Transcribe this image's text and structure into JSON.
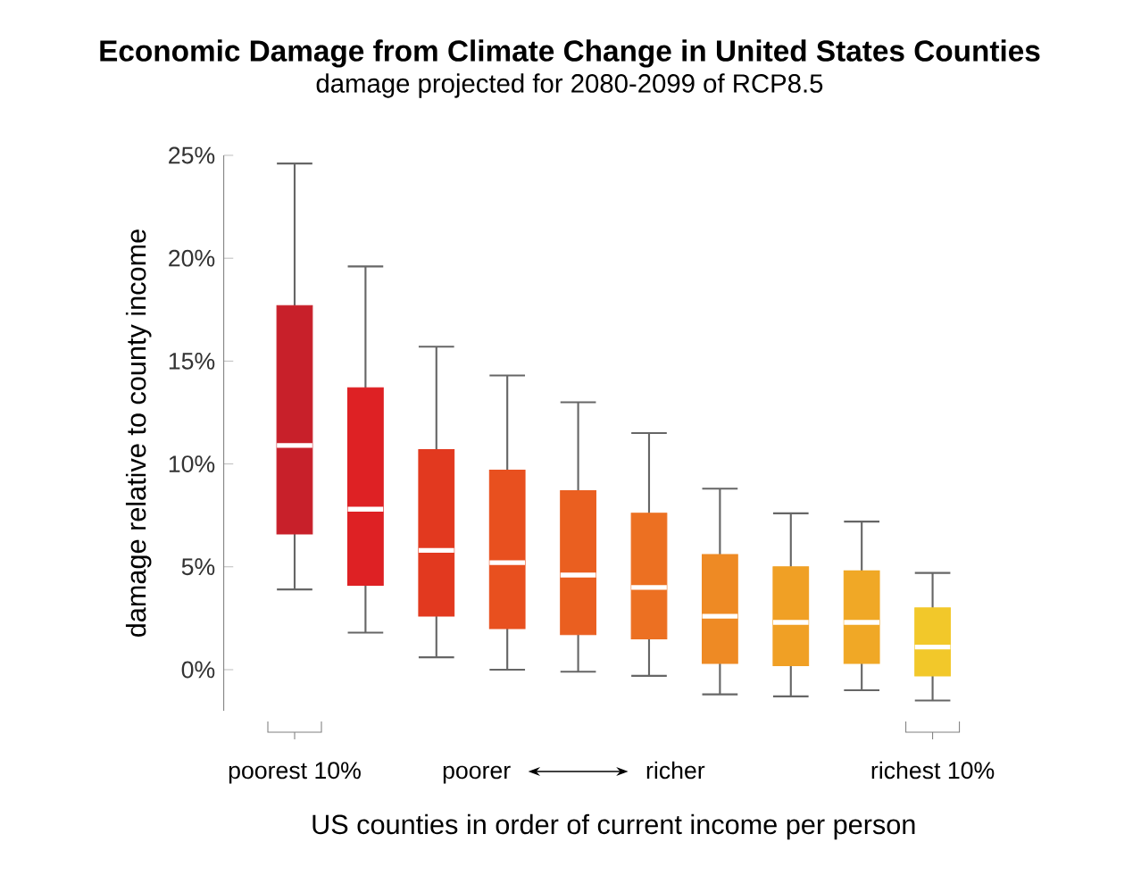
{
  "chart_data": {
    "type": "box",
    "title": "Economic Damage from Climate Change in United States Counties",
    "subtitle": "damage projected for 2080-2099 of RCP8.5",
    "xlabel": "US counties in order of current income per person",
    "ylabel": "damage relative to county income",
    "categories": [
      "poorest 10%",
      null,
      null,
      null,
      null,
      null,
      null,
      null,
      null,
      "richest 10%"
    ],
    "boxes": [
      {
        "low": 3.9,
        "q1": 6.6,
        "median": 10.9,
        "q3": 17.7,
        "high": 24.6
      },
      {
        "low": 1.8,
        "q1": 4.1,
        "median": 7.8,
        "q3": 13.7,
        "high": 19.6
      },
      {
        "low": 0.6,
        "q1": 2.6,
        "median": 5.8,
        "q3": 10.7,
        "high": 15.7
      },
      {
        "low": 0.0,
        "q1": 2.0,
        "median": 5.2,
        "q3": 9.7,
        "high": 14.3
      },
      {
        "low": -0.1,
        "q1": 1.7,
        "median": 4.6,
        "q3": 8.7,
        "high": 13.0
      },
      {
        "low": -0.3,
        "q1": 1.5,
        "median": 4.0,
        "q3": 7.6,
        "high": 11.5
      },
      {
        "low": -1.2,
        "q1": 0.3,
        "median": 2.6,
        "q3": 5.6,
        "high": 8.8
      },
      {
        "low": -1.3,
        "q1": 0.2,
        "median": 2.3,
        "q3": 5.0,
        "high": 7.6
      },
      {
        "low": -1.0,
        "q1": 0.3,
        "median": 2.3,
        "q3": 4.8,
        "high": 7.2
      },
      {
        "low": -1.5,
        "q1": -0.3,
        "median": 1.1,
        "q3": 3.0,
        "high": 4.7
      }
    ],
    "colors": [
      "#c8202a",
      "#de2124",
      "#e2391f",
      "#e8501f",
      "#ea5f20",
      "#ec7022",
      "#ee8a24",
      "#f0a025",
      "#f0a826",
      "#f2c82a"
    ],
    "ylim": [
      -2,
      25
    ],
    "yticks": [
      {
        "value": 0,
        "label": "0%"
      },
      {
        "value": 5,
        "label": "5%"
      },
      {
        "value": 10,
        "label": "10%"
      },
      {
        "value": 15,
        "label": "15%"
      },
      {
        "value": 20,
        "label": "20%"
      },
      {
        "value": 25,
        "label": "25%"
      }
    ],
    "grid": false,
    "annotations": [
      "poorer",
      "richer"
    ]
  }
}
